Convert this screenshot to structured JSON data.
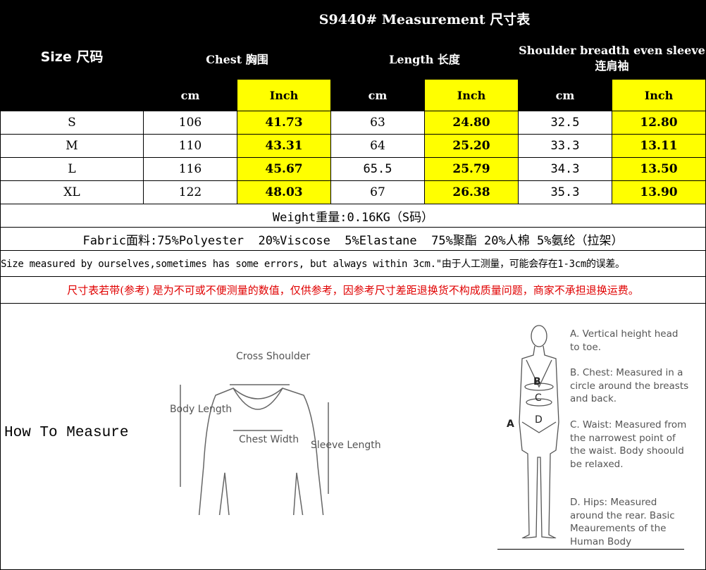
{
  "title": "S9440# Measurement 尺寸表",
  "size_header": "Size 尺码",
  "groups": [
    "Chest 胸围",
    "Length 长度",
    "Shoulder breadth even sleeve连肩袖"
  ],
  "units": [
    "cm",
    "Inch",
    "cm",
    "Inch",
    "cm",
    "Inch"
  ],
  "rows": [
    {
      "size": "S",
      "values": [
        "106",
        "41.73",
        "63",
        "24.80",
        "32.5",
        "12.80"
      ]
    },
    {
      "size": "M",
      "values": [
        "110",
        "43.31",
        "64",
        "25.20",
        "33.3",
        "13.11"
      ]
    },
    {
      "size": "L",
      "values": [
        "116",
        "45.67",
        "65.5",
        "25.79",
        "34.3",
        "13.50"
      ]
    },
    {
      "size": "XL",
      "values": [
        "122",
        "48.03",
        "67",
        "26.38",
        "35.3",
        "13.90"
      ]
    }
  ],
  "weight": "Weight重量:0.16KG（S码）",
  "fabric": "Fabric面料:75%Polyester  20%Viscose  5%Elastane  75%聚酯 20%人棉 5%氨纶（拉架）",
  "note": "Size measured by ourselves,sometimes has some errors, but always within 3cm.\"由于人工测量，可能会存在1-3cm的误差。",
  "disclaimer": "尺寸表若带(参考) 是为不可或不便测量的数值，仅供参考，因参考尺寸差距退换货不构成质量问题，商家不承担退换运费。",
  "how_to": "How To Measure",
  "sweater_labels": {
    "shoulder": "Cross Shoulder",
    "body": "Body Length",
    "chest": "Chest Width",
    "sleeve": "Sleeve Length"
  },
  "body_labels": {
    "a": "A",
    "b": "B",
    "c": "C",
    "d": "D"
  },
  "body_desc": [
    "A. Vertical height head to toe.",
    "B. Chest: Measured in a circle around the breasts and back.",
    "C. Waist: Measured from the narrowest point of the waist. Body shoould be relaxed.",
    "D. Hips: Measured around the rear. Basic Meaurements of the Human Body"
  ],
  "colors": {
    "highlight": "#ffff00",
    "header": "#000000",
    "warning": "#e00000"
  }
}
